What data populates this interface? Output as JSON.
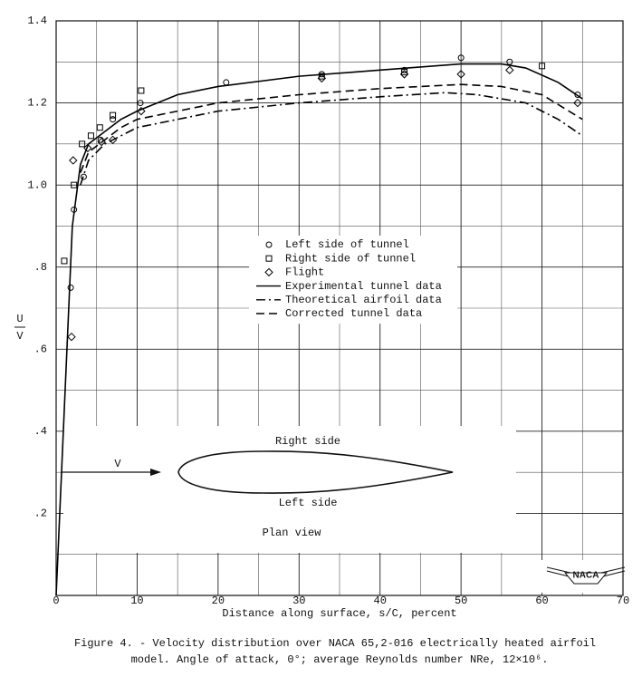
{
  "chart_data": {
    "type": "line",
    "ylabel": {
      "numerator": "U",
      "denominator": "V"
    },
    "xlabel": "Distance along surface, s/C, percent",
    "caption": [
      "Figure 4. - Velocity distribution over NACA 65,2-016 electrically heated airfoil",
      "model. Angle of attack, 0°; average Reynolds number NRe, 12×10⁶."
    ],
    "annotations": [
      "Right side",
      "Left side",
      "Plan view",
      "V"
    ],
    "logo": "NACA",
    "xlim": [
      0,
      70
    ],
    "xticks": [
      0,
      10,
      20,
      30,
      40,
      50,
      60,
      70
    ],
    "ylim": [
      0,
      1.4
    ],
    "yticks": [
      {
        "value": 0.2,
        "label": ".2"
      },
      {
        "value": 0.4,
        "label": ".4"
      },
      {
        "value": 0.6,
        "label": ".6"
      },
      {
        "value": 0.8,
        "label": ".8"
      },
      {
        "value": 1,
        "label": "1.0"
      },
      1.2,
      1.4
    ],
    "grid": true,
    "legend": "center",
    "series": [
      {
        "name": "Left side of tunnel",
        "color": "#000",
        "mode": "markers",
        "marker": "circle",
        "x": [
          1.8,
          2.2,
          3.4,
          5.5,
          7,
          10.4,
          21,
          32.8,
          43,
          50,
          56,
          64.4
        ],
        "values": [
          0.75,
          0.94,
          1.02,
          1.11,
          1.16,
          1.2,
          1.25,
          1.27,
          1.28,
          1.31,
          1.3,
          1.22
        ]
      },
      {
        "name": "Right side of tunnel",
        "color": "#000",
        "mode": "markers",
        "marker": "square",
        "x": [
          1,
          2.2,
          3.2,
          4.3,
          5.4,
          7,
          10.5,
          32.8,
          43,
          60
        ],
        "values": [
          0.815,
          1.0,
          1.1,
          1.12,
          1.14,
          1.17,
          1.23,
          1.265,
          1.275,
          1.29
        ]
      },
      {
        "name": "Flight",
        "color": "#000",
        "mode": "markers",
        "marker": "diamond",
        "x": [
          1.9,
          2.1,
          3.9,
          5.6,
          7,
          10.5,
          32.8,
          43,
          50,
          56,
          64.4
        ],
        "values": [
          0.63,
          1.06,
          1.09,
          1.105,
          1.11,
          1.18,
          1.26,
          1.27,
          1.27,
          1.28,
          1.2
        ]
      },
      {
        "name": "Experimental tunnel data",
        "color": "#000",
        "mode": "line",
        "dash": "solid",
        "x": [
          0,
          1,
          2,
          3,
          4,
          6,
          8,
          10,
          15,
          20,
          30,
          40,
          50,
          55,
          58,
          62,
          65
        ],
        "values": [
          0,
          0.45,
          0.9,
          1.05,
          1.1,
          1.13,
          1.16,
          1.18,
          1.22,
          1.24,
          1.265,
          1.28,
          1.295,
          1.295,
          1.285,
          1.25,
          1.21
        ]
      },
      {
        "name": "Theoretical airfoil data",
        "color": "#000",
        "mode": "line",
        "dash": "dashdot",
        "x": [
          3,
          4,
          6,
          8,
          10,
          20,
          30,
          40,
          48,
          52,
          58,
          62,
          65
        ],
        "values": [
          1.0,
          1.06,
          1.1,
          1.12,
          1.14,
          1.18,
          1.2,
          1.215,
          1.225,
          1.22,
          1.2,
          1.16,
          1.12
        ]
      },
      {
        "name": "Corrected tunnel data",
        "color": "#000",
        "mode": "line",
        "dash": "dash",
        "x": [
          3,
          4,
          6,
          8,
          10,
          20,
          30,
          40,
          50,
          55,
          60,
          65
        ],
        "values": [
          1.03,
          1.08,
          1.11,
          1.14,
          1.16,
          1.2,
          1.22,
          1.235,
          1.245,
          1.24,
          1.22,
          1.16
        ]
      }
    ]
  }
}
